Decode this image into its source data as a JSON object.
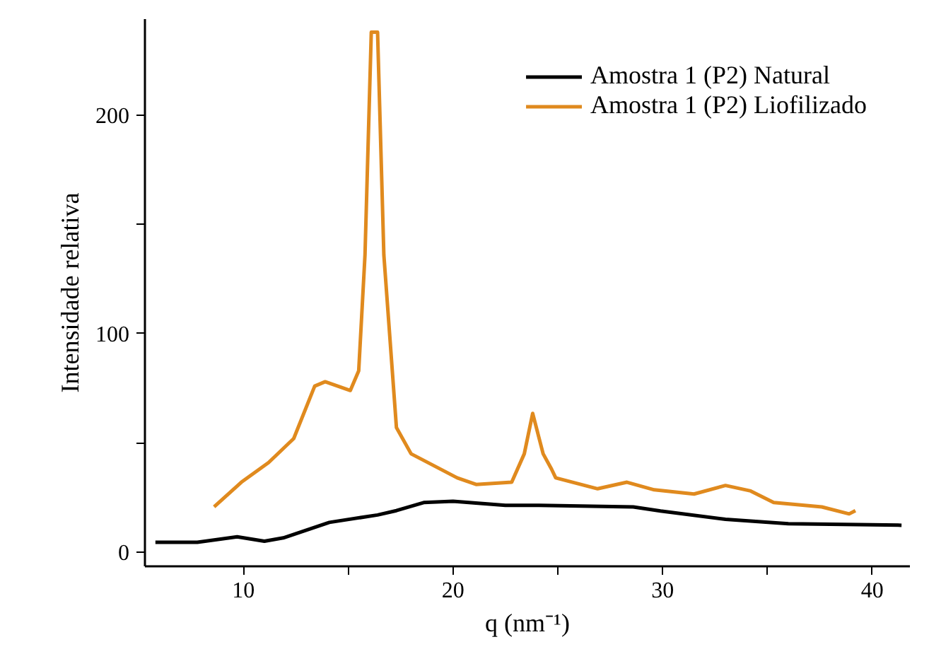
{
  "chart_data": {
    "type": "line",
    "xlabel": "q (nm⁻¹)",
    "ylabel": "Intensidade relativa",
    "xlim": [
      5.3,
      41.8
    ],
    "xticks": [
      10,
      {
        "value": 15,
        "label": null
      },
      20,
      {
        "value": 25,
        "label": null
      },
      30,
      {
        "value": 35,
        "label": null
      },
      40
    ],
    "ylim": [
      -6.5,
      244
    ],
    "yticks": [
      0,
      {
        "value": 50,
        "label": null
      },
      100,
      {
        "value": 150,
        "label": null
      },
      200
    ],
    "grid": false,
    "legend": "top right",
    "marker": "none",
    "line_style": "solid",
    "series": [
      {
        "name": "Amostra 1 (P2) Natural",
        "color": "#000000",
        "x": [
          5.8,
          7.8,
          9.7,
          11.0,
          11.9,
          14.1,
          16.4,
          17.3,
          18.6,
          20.0,
          22.5,
          24.1,
          28.6,
          29.9,
          33.0,
          36.0,
          41.4
        ],
        "values": [
          4.5,
          4.5,
          7,
          5,
          6.5,
          13.6,
          17,
          19,
          22.7,
          23.3,
          21.4,
          21.4,
          20.7,
          18.8,
          15,
          13,
          12.3
        ]
      },
      {
        "name": "Amostra 1 (P2) Liofilizado",
        "color": "#e08a1e",
        "x": [
          8.6,
          9.9,
          11.2,
          12.4,
          13.4,
          13.9,
          15.1,
          15.5,
          15.8,
          16.1,
          16.4,
          16.7,
          17.3,
          18.0,
          20.2,
          21.1,
          22.8,
          23.4,
          23.8,
          24.3,
          24.7,
          24.9,
          26.9,
          28.3,
          29.6,
          31.5,
          33.0,
          34.2,
          35.3,
          37.6,
          38.9,
          39.2
        ],
        "values": [
          20.7,
          32,
          41,
          52,
          76,
          78,
          74,
          83,
          136,
          238,
          238,
          136,
          57,
          45,
          34,
          31,
          32,
          45,
          63.5,
          45,
          38,
          34,
          29,
          32,
          28.5,
          26.6,
          30.5,
          28,
          22.7,
          20.7,
          17.5,
          19
        ]
      }
    ]
  }
}
